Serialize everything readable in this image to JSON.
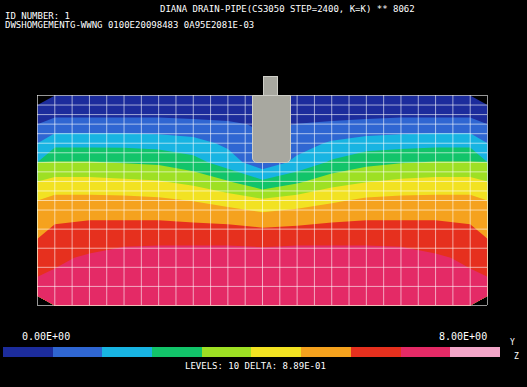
{
  "chart_data": {
    "type": "contour",
    "title": "DIANA DRAIN-PIPE(CS3050 STEP=2400, K=K) ** 8062",
    "header_lines": [
      "ID NUMBER: 1",
      "DWSHOMGEMENTG-WWNG 0100E20098483 0A95E2081E-03"
    ],
    "tick_labels": false,
    "grid": true,
    "xlim": [
      -0.5,
      12.5
    ],
    "ylim": [
      -0.5,
      10.5
    ],
    "cells": [
      [
        0.3,
        0.3,
        0.3,
        0.3,
        0.3,
        0.3,
        0.3,
        0.3,
        0.3,
        0.3,
        0.3,
        0.3,
        0.3
      ],
      [
        1.2,
        1.2,
        1.2,
        1.2,
        1.1,
        1.0,
        0.8,
        0.9,
        1.0,
        1.1,
        1.2,
        1.2,
        1.2
      ],
      [
        2.4,
        2.4,
        2.4,
        2.3,
        2.1,
        1.6,
        1.0,
        1.4,
        1.9,
        2.2,
        2.3,
        2.4,
        2.4
      ],
      [
        3.6,
        3.6,
        3.5,
        3.4,
        3.0,
        2.2,
        1.2,
        2.0,
        2.8,
        3.3,
        3.5,
        3.6,
        3.6
      ],
      [
        4.7,
        4.7,
        4.6,
        4.5,
        4.2,
        3.6,
        2.8,
        3.4,
        4.1,
        4.4,
        4.6,
        4.7,
        4.7
      ],
      [
        5.6,
        5.6,
        5.6,
        5.5,
        5.3,
        5.0,
        4.6,
        4.9,
        5.2,
        5.5,
        5.6,
        5.6,
        5.6
      ],
      [
        6.1,
        6.2,
        6.2,
        6.2,
        6.1,
        6.0,
        5.8,
        5.9,
        6.1,
        6.2,
        6.2,
        6.2,
        6.1
      ],
      [
        6.6,
        6.8,
        6.9,
        6.9,
        6.9,
        6.9,
        6.8,
        6.9,
        6.9,
        6.9,
        6.9,
        6.8,
        6.6
      ],
      [
        7.0,
        7.2,
        7.4,
        7.5,
        7.5,
        7.5,
        7.5,
        7.5,
        7.5,
        7.5,
        7.4,
        7.2,
        7.0
      ],
      [
        7.2,
        7.4,
        7.6,
        7.8,
        7.9,
        7.9,
        8.0,
        7.9,
        7.9,
        7.8,
        7.6,
        7.4,
        7.2
      ],
      [
        7.3,
        7.5,
        7.7,
        7.9,
        8.0,
        8.0,
        8.0,
        8.0,
        8.0,
        7.9,
        7.7,
        7.5,
        7.3
      ]
    ],
    "colorbar": {
      "range": [
        0,
        8
      ],
      "ticks": [
        {
          "value": 0,
          "label": "0.00E+00"
        },
        {
          "value": 8,
          "label": "8.00E+00"
        }
      ],
      "levels": 10,
      "delta": 0.889,
      "levels_text": "LEVELS: 10 DELTA: 8.89E-01",
      "colors": [
        "#1c2c9c",
        "#2f66d2",
        "#18b4e2",
        "#12c46a",
        "#9ee024",
        "#f2e222",
        "#f5a21e",
        "#e6301e",
        "#e42a66",
        "#f3a6c8"
      ]
    },
    "triad": [
      "Y",
      "Z"
    ]
  }
}
